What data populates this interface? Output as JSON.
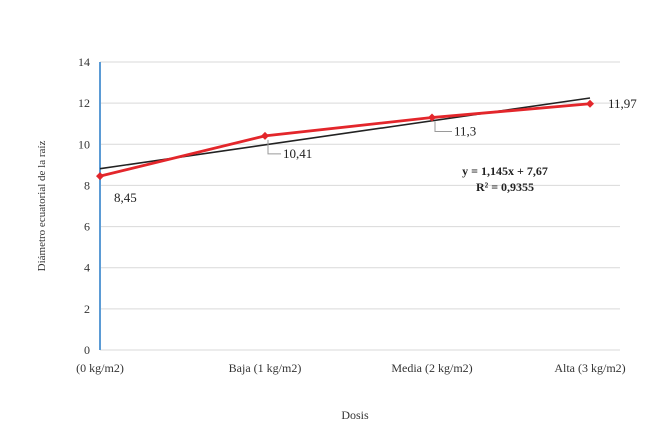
{
  "chart_data": {
    "type": "line",
    "categories": [
      "(0 kg/m2)",
      "Baja (1 kg/m2)",
      "Media (2 kg/m2)",
      "Alta (3 kg/m2)"
    ],
    "series": [
      {
        "values": [
          8.45,
          10.41,
          11.3,
          11.97
        ],
        "color": "#e3262b"
      }
    ],
    "data_labels": [
      "8,45",
      "10,41",
      "11,3",
      "11,97"
    ],
    "trendline": {
      "type": "linear",
      "slope": 1.145,
      "intercept": 7.67,
      "equation": "y = 1,145x + 7,67",
      "r_squared": "R² = 0,9355",
      "color": "#222222"
    },
    "xlabel": "Dosis",
    "ylabel": "Diámetro ecuatorial de la raíz",
    "ylim": [
      0,
      14
    ],
    "yticks": [
      0,
      2,
      4,
      6,
      8,
      10,
      12,
      14
    ],
    "grid": true,
    "legend": "none",
    "colors": {
      "grid": "#d9d9d9",
      "y_axis": "#5b9bd5"
    }
  }
}
